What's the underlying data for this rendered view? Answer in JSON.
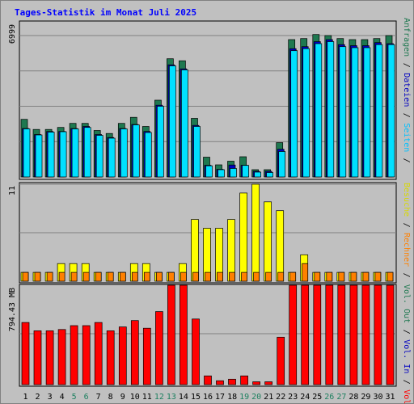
{
  "chart_data": {
    "type": "bar",
    "title": "Tages-Statistik im Monat Juli 2025",
    "categories": [
      "1",
      "2",
      "3",
      "4",
      "5",
      "6",
      "7",
      "8",
      "9",
      "10",
      "11",
      "12",
      "13",
      "14",
      "15",
      "16",
      "17",
      "18",
      "19",
      "20",
      "21",
      "22",
      "23",
      "24",
      "25",
      "26",
      "27",
      "28",
      "29",
      "30",
      "31"
    ],
    "weekend_days": [
      "5",
      "6",
      "12",
      "13",
      "19",
      "20",
      "26",
      "27"
    ],
    "panels": [
      {
        "name": "requests",
        "ymax_label": "6999",
        "ymax": 6999,
        "series": [
          {
            "name": "Anfragen",
            "color": "#1e7850",
            "values": [
              2850,
              2350,
              2350,
              2450,
              2650,
              2650,
              2300,
              2150,
              2650,
              2950,
              2500,
              3800,
              5850,
              5750,
              2900,
              980,
              600,
              780,
              1000,
              360,
              360,
              1700,
              6800,
              6850,
              7050,
              7000,
              6850,
              6800,
              6800,
              6850,
              7000
            ]
          },
          {
            "name": "Dateien",
            "color": "#0000c0",
            "values": [
              2400,
              2100,
              2250,
              2250,
              2400,
              2500,
              2100,
              1950,
              2400,
              2600,
              2250,
              3550,
              5550,
              5350,
              2550,
              580,
              380,
              590,
              580,
              280,
              280,
              1370,
              6350,
              6450,
              6700,
              6800,
              6550,
              6500,
              6500,
              6650,
              6600
            ]
          },
          {
            "name": "Seiten",
            "color": "#00e0ff",
            "values": [
              2380,
              2080,
              2220,
              2240,
              2380,
              2450,
              2060,
              1920,
              2380,
              2580,
              2200,
              3500,
              5500,
              5300,
              2500,
              550,
              360,
              420,
              570,
              240,
              220,
              1260,
              6250,
              6350,
              6600,
              6700,
              6450,
              6400,
              6400,
              6550,
              6550
            ]
          }
        ]
      },
      {
        "name": "visits",
        "ymax_label": "11",
        "ymax": 11,
        "series": [
          {
            "name": "Besuche",
            "color": "#ffff00",
            "values": [
              1,
              1,
              1,
              2,
              2,
              2,
              1,
              1,
              1,
              2,
              2,
              1,
              1,
              2,
              7,
              6,
              6,
              7,
              10,
              11,
              9,
              8,
              1,
              3,
              1,
              1,
              1,
              1,
              1,
              1,
              1
            ]
          },
          {
            "name": "Rechner",
            "color": "#ff8000",
            "values": [
              1,
              1,
              1,
              1,
              1,
              1,
              1,
              1,
              1,
              1,
              1,
              1,
              1,
              1,
              1,
              1,
              1,
              1,
              1,
              1,
              1,
              1,
              1,
              2,
              1,
              1,
              1,
              1,
              1,
              1,
              1
            ]
          }
        ]
      },
      {
        "name": "volume",
        "ymax_label": "794.43 MB",
        "ymax": 794.43,
        "series": [
          {
            "name": "Volumen",
            "color": "#ff0000",
            "values": [
              485,
              420,
              420,
              430,
              460,
              460,
              485,
              420,
              450,
              500,
              440,
              570,
              820,
              790,
              512,
              68,
              30,
              42,
              68,
              22,
              22,
              370,
              845,
              835,
              930,
              920,
              920,
              920,
              890,
              895,
              900
            ]
          }
        ]
      }
    ],
    "legend": [
      {
        "label": "Anfragen",
        "color": "#1e7850",
        "panel": "requests"
      },
      {
        "label": "/",
        "color": "#000000",
        "panel": "requests"
      },
      {
        "label": "Dateien",
        "color": "#0000c0",
        "panel": "requests"
      },
      {
        "label": "/",
        "color": "#000000",
        "panel": "requests"
      },
      {
        "label": "Seiten",
        "color": "#00c0ff",
        "panel": "requests"
      },
      {
        "label": "/",
        "color": "#000000",
        "panel": "requests"
      },
      {
        "label": "Besuche",
        "color": "#d8d800",
        "panel": "visits"
      },
      {
        "label": "/",
        "color": "#000000",
        "panel": "visits"
      },
      {
        "label": "Rechner",
        "color": "#ff8000",
        "panel": "visits"
      },
      {
        "label": "/",
        "color": "#000000",
        "panel": "visits"
      },
      {
        "label": "Vol. Out",
        "color": "#1e7850",
        "panel": "volume"
      },
      {
        "label": "/",
        "color": "#000000",
        "panel": "volume"
      },
      {
        "label": "Vol. In",
        "color": "#0000c0",
        "panel": "volume"
      },
      {
        "label": "/",
        "color": "#000000",
        "panel": "volume"
      },
      {
        "label": "Volumen",
        "color": "#ff0000",
        "panel": "volume"
      }
    ]
  }
}
